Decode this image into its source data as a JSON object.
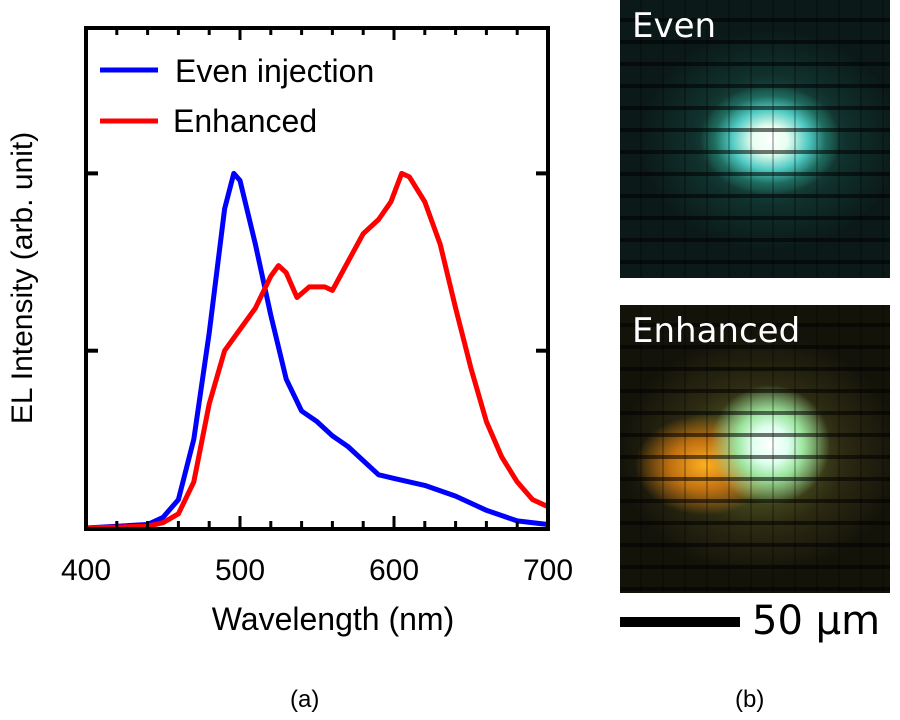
{
  "chart_data": {
    "type": "line",
    "title": "",
    "xlabel": "Wavelength (nm)",
    "ylabel": "EL Intensity (arb. unit)",
    "xlim": [
      400,
      700
    ],
    "ylim": [
      0,
      1.41
    ],
    "xticks": [
      400,
      500,
      600,
      700
    ],
    "xtick_labels": [
      "400",
      "500",
      "600",
      "700"
    ],
    "yticks": [
      0.5,
      1.0
    ],
    "ytick_labels_shown": false,
    "grid": false,
    "legend_position": "top-left",
    "series": [
      {
        "name": "Even injection",
        "color": "#0000ff",
        "x": [
          400,
          440,
          450,
          460,
          470,
          480,
          490,
          496,
          500,
          510,
          520,
          530,
          540,
          550,
          560,
          570,
          580,
          590,
          600,
          620,
          640,
          660,
          680,
          700
        ],
        "y": [
          0,
          0.01,
          0.03,
          0.08,
          0.25,
          0.55,
          0.9,
          1.0,
          0.98,
          0.8,
          0.6,
          0.42,
          0.33,
          0.3,
          0.26,
          0.23,
          0.19,
          0.15,
          0.14,
          0.12,
          0.09,
          0.05,
          0.02,
          0.01
        ]
      },
      {
        "name": "Enhanced",
        "color": "#ff0000",
        "x": [
          400,
          440,
          450,
          460,
          470,
          480,
          490,
          500,
          510,
          520,
          525,
          530,
          537,
          545,
          555,
          560,
          570,
          580,
          590,
          598,
          605,
          610,
          620,
          630,
          640,
          650,
          660,
          670,
          680,
          690,
          700
        ],
        "y": [
          0,
          0.005,
          0.015,
          0.04,
          0.13,
          0.35,
          0.5,
          0.56,
          0.62,
          0.71,
          0.74,
          0.72,
          0.65,
          0.68,
          0.68,
          0.67,
          0.75,
          0.83,
          0.87,
          0.92,
          1.0,
          0.99,
          0.92,
          0.8,
          0.62,
          0.45,
          0.3,
          0.2,
          0.13,
          0.08,
          0.06
        ]
      }
    ]
  },
  "panels": {
    "a_label": "(a)",
    "b_label": "(b)",
    "image_top_label": "Even",
    "image_bottom_label": "Enhanced",
    "scale_bar_label": "50 μm"
  }
}
